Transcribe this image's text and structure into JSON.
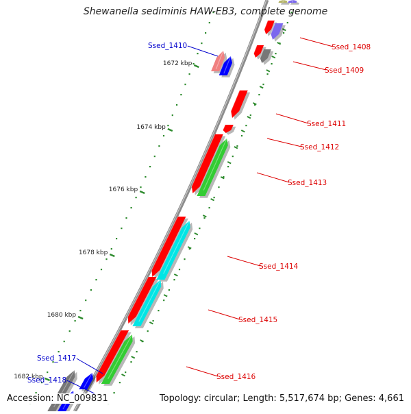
{
  "title": "Shewanella sediminis HAW-EB3, complete genome",
  "footer": {
    "accession": "Accession: NC_009831",
    "topology": "Topology: circular; Length: 5,517,674 bp; Genes: 4,661"
  },
  "ruler": {
    "ticks": [
      "1672 kbp",
      "1674 kbp",
      "1676 kbp",
      "1678 kbp",
      "1680 kbp",
      "1682 kbp"
    ]
  },
  "gene_labels": {
    "blue": [
      "Ssed_1410",
      "Ssed_1417",
      "Ssed_1418"
    ],
    "red": [
      "Ssed_1408",
      "Ssed_1409",
      "Ssed_1411",
      "Ssed_1412",
      "Ssed_1413",
      "Ssed_1414",
      "Ssed_1415",
      "Ssed_1416"
    ]
  },
  "colors": {
    "backbone": "#8c8c8c",
    "tick": "#2e8b2e",
    "label_blue": "#0000cc",
    "label_red": "#dd0000",
    "red": "#ff0000",
    "green": "#33cc33",
    "cyan": "#00e5e5",
    "blue": "#0000ff",
    "pink": "#f08080",
    "purple": "#7b68ee",
    "gray": "#777777",
    "olive": "#b5b56a"
  }
}
